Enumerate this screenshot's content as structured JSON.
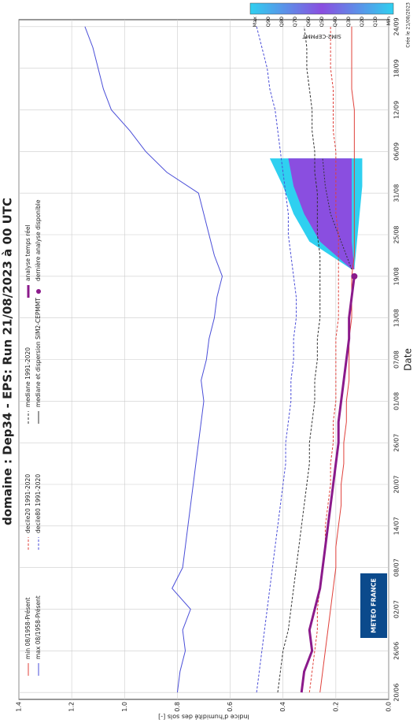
{
  "chart_data": {
    "type": "line",
    "title": "domaine : Dep34  -  EPS: Run 21/08/2023 à 00 UTC",
    "y_label": "Indice d'humidité des sols [-]",
    "x_label": "Date",
    "note": "Crée le 21/08/2023",
    "logo": "METEO FRANCE",
    "xlim": [
      -1,
      97
    ],
    "xticks": [
      {
        "value": 0,
        "label": "20/06"
      },
      {
        "value": 6,
        "label": "26/06"
      },
      {
        "value": 12,
        "label": "02/07"
      },
      {
        "value": 18,
        "label": "08/07"
      },
      {
        "value": 24,
        "label": "14/07"
      },
      {
        "value": 30,
        "label": "20/07"
      },
      {
        "value": 36,
        "label": "26/07"
      },
      {
        "value": 42,
        "label": "01/08"
      },
      {
        "value": 48,
        "label": "07/08"
      },
      {
        "value": 54,
        "label": "13/08"
      },
      {
        "value": 60,
        "label": "19/08"
      },
      {
        "value": 66,
        "label": "25/08"
      },
      {
        "value": 72,
        "label": "31/08"
      },
      {
        "value": 78,
        "label": "06/09"
      },
      {
        "value": 84,
        "label": "12/09"
      },
      {
        "value": 90,
        "label": "18/09"
      },
      {
        "value": 96,
        "label": "24/09"
      }
    ],
    "ylim": [
      0,
      1.4
    ],
    "yticks": [
      {
        "value": 0,
        "label": "0.0"
      },
      0.2,
      0.4,
      0.6,
      0.8,
      {
        "value": 1,
        "label": "1.0"
      },
      1.2,
      1.4
    ],
    "grid": true,
    "series": [
      {
        "name": "min 08/1958-Présent",
        "color": "#e0403a",
        "style": "solid",
        "width": 1,
        "x": [
          0,
          3,
          6,
          9,
          12,
          15,
          18,
          21,
          24,
          27,
          30,
          33,
          36,
          39,
          42,
          45,
          48,
          51,
          54,
          57,
          60,
          63,
          66,
          69,
          72,
          75,
          78,
          81,
          84,
          87,
          90,
          93,
          96
        ],
        "values": [
          0.26,
          0.25,
          0.24,
          0.23,
          0.22,
          0.21,
          0.2,
          0.2,
          0.19,
          0.18,
          0.18,
          0.17,
          0.17,
          0.16,
          0.16,
          0.15,
          0.15,
          0.15,
          0.14,
          0.14,
          0.14,
          0.13,
          0.13,
          0.13,
          0.13,
          0.13,
          0.13,
          0.13,
          0.13,
          0.14,
          0.14,
          0.14,
          0.14
        ]
      },
      {
        "name": "max 08/1958-Présent",
        "color": "#4a4ed8",
        "style": "solid",
        "width": 1,
        "x": [
          0,
          3,
          6,
          9,
          12,
          15,
          18,
          21,
          24,
          27,
          30,
          33,
          36,
          39,
          42,
          45,
          48,
          51,
          54,
          57,
          60,
          63,
          66,
          69,
          72,
          75,
          78,
          81,
          84,
          87,
          90,
          93,
          96
        ],
        "values": [
          0.8,
          0.79,
          0.77,
          0.78,
          0.75,
          0.82,
          0.78,
          0.77,
          0.76,
          0.75,
          0.74,
          0.73,
          0.72,
          0.71,
          0.7,
          0.71,
          0.69,
          0.68,
          0.66,
          0.65,
          0.63,
          0.66,
          0.68,
          0.7,
          0.72,
          0.84,
          0.92,
          0.98,
          1.05,
          1.08,
          1.1,
          1.12,
          1.15
        ]
      },
      {
        "name": "decile20 1991-2020",
        "color": "#e0403a",
        "style": "dashed",
        "width": 1,
        "x": [
          0,
          3,
          6,
          9,
          12,
          15,
          18,
          21,
          24,
          27,
          30,
          33,
          36,
          39,
          42,
          45,
          48,
          51,
          54,
          57,
          60,
          63,
          66,
          69,
          72,
          75,
          78,
          81,
          84,
          87,
          90,
          93,
          96
        ],
        "values": [
          0.3,
          0.29,
          0.28,
          0.27,
          0.27,
          0.26,
          0.25,
          0.24,
          0.24,
          0.23,
          0.22,
          0.22,
          0.21,
          0.21,
          0.2,
          0.2,
          0.2,
          0.2,
          0.19,
          0.19,
          0.19,
          0.19,
          0.19,
          0.2,
          0.2,
          0.2,
          0.2,
          0.21,
          0.21,
          0.21,
          0.22,
          0.22,
          0.22
        ]
      },
      {
        "name": "decile80 1991-2020",
        "color": "#4a4ed8",
        "style": "dashed",
        "width": 1,
        "x": [
          0,
          3,
          6,
          9,
          12,
          15,
          18,
          21,
          24,
          27,
          30,
          33,
          36,
          39,
          42,
          45,
          48,
          51,
          54,
          57,
          60,
          63,
          66,
          69,
          72,
          75,
          78,
          81,
          84,
          87,
          90,
          93,
          96
        ],
        "values": [
          0.5,
          0.49,
          0.48,
          0.47,
          0.46,
          0.45,
          0.44,
          0.43,
          0.42,
          0.41,
          0.4,
          0.39,
          0.39,
          0.38,
          0.37,
          0.37,
          0.36,
          0.36,
          0.35,
          0.35,
          0.36,
          0.37,
          0.38,
          0.38,
          0.39,
          0.4,
          0.41,
          0.42,
          0.43,
          0.45,
          0.46,
          0.48,
          0.5
        ]
      },
      {
        "name": "mediane 1991-2020",
        "color": "#333333",
        "style": "dashed",
        "width": 1,
        "x": [
          0,
          3,
          6,
          9,
          12,
          15,
          18,
          21,
          24,
          27,
          30,
          33,
          36,
          39,
          42,
          45,
          48,
          51,
          54,
          57,
          60,
          63,
          66,
          69,
          72,
          75,
          78,
          81,
          84,
          87,
          90,
          93,
          96
        ],
        "values": [
          0.42,
          0.41,
          0.4,
          0.38,
          0.37,
          0.36,
          0.35,
          0.34,
          0.33,
          0.32,
          0.31,
          0.3,
          0.3,
          0.29,
          0.28,
          0.28,
          0.27,
          0.27,
          0.26,
          0.26,
          0.26,
          0.26,
          0.27,
          0.27,
          0.27,
          0.28,
          0.28,
          0.29,
          0.29,
          0.3,
          0.31,
          0.31,
          0.32
        ]
      },
      {
        "name": "analyse temps réel",
        "color": "#8b1a8b",
        "style": "solid",
        "width": 3,
        "x": [
          0,
          3,
          6,
          9,
          12,
          15,
          18,
          21,
          24,
          27,
          30,
          33,
          36,
          39,
          42,
          45,
          48,
          51,
          54,
          57,
          60
        ],
        "values": [
          0.33,
          0.32,
          0.29,
          0.3,
          0.28,
          0.26,
          0.25,
          0.24,
          0.23,
          0.22,
          0.21,
          0.2,
          0.19,
          0.19,
          0.18,
          0.17,
          0.16,
          0.15,
          0.15,
          0.14,
          0.13
        ]
      }
    ],
    "last_analysis": {
      "name": "dernière analyse disponible",
      "color": "#8b1a8b",
      "x": 60,
      "value": 0.13
    },
    "ensemble": {
      "name": "mediane et dispersion SIM2-CEPMMT",
      "outer_color": "#2fd0f0",
      "inner_color": "#8a4ee0",
      "median_color": "#333333",
      "x": [
        61,
        65,
        69,
        73,
        77
      ],
      "min": [
        0.13,
        0.12,
        0.11,
        0.1,
        0.1
      ],
      "q10": [
        0.13,
        0.14,
        0.14,
        0.14,
        0.14
      ],
      "median": [
        0.14,
        0.18,
        0.22,
        0.24,
        0.25
      ],
      "q90": [
        0.14,
        0.26,
        0.32,
        0.36,
        0.38
      ],
      "max": [
        0.14,
        0.3,
        0.36,
        0.4,
        0.45
      ]
    },
    "colorbar": {
      "title": "SIM2-CEPMMT",
      "labels": [
        "Max",
        "Q90",
        "Q80",
        "Q70",
        "Q60",
        "Q50",
        "Q40",
        "Q30",
        "Q20",
        "Q10",
        "Min"
      ]
    }
  }
}
